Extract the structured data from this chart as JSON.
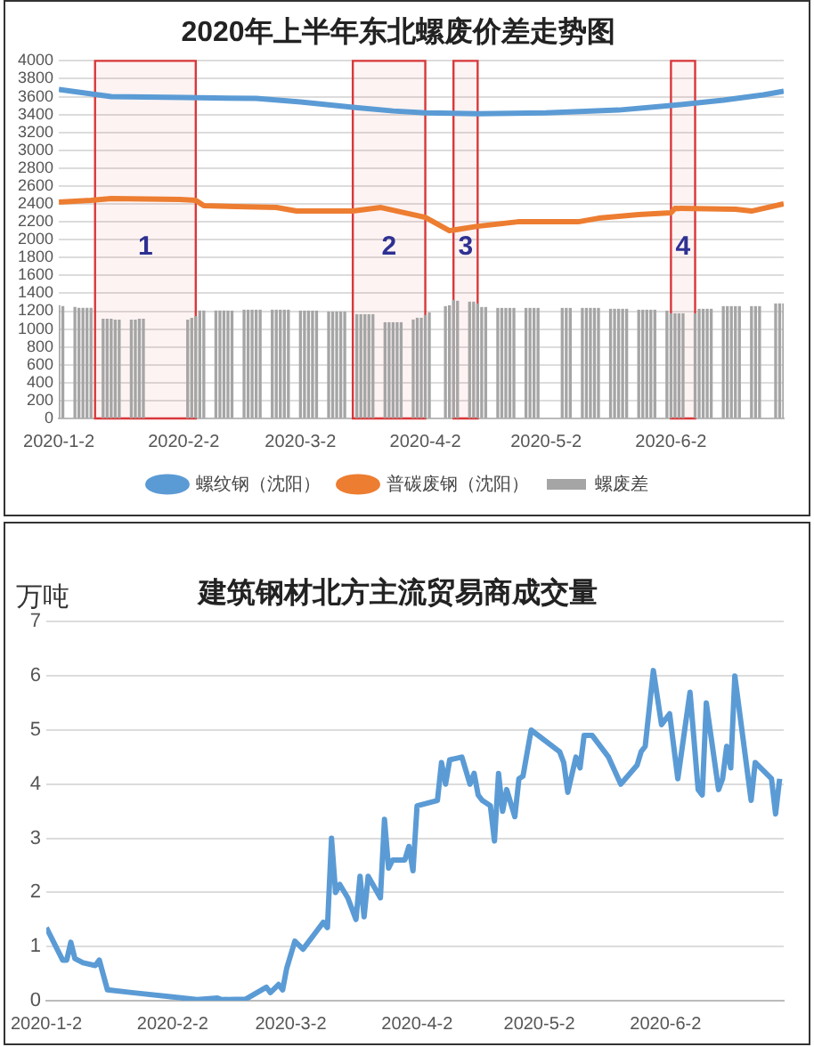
{
  "chart_data": [
    {
      "type": "line",
      "title": "2020年上半年东北螺废价差走势图",
      "legend": "bottom",
      "grid": "y",
      "marker": "none",
      "xlim": [
        "2020-01-02",
        "2020-06-30"
      ],
      "xticks": [
        {
          "value": "2020-01-02",
          "label": "2020-1-2"
        },
        {
          "value": "2020-02-02",
          "label": "2020-2-2"
        },
        {
          "value": "2020-03-02",
          "label": "2020-3-2"
        },
        {
          "value": "2020-04-02",
          "label": "2020-4-2"
        },
        {
          "value": "2020-05-02",
          "label": "2020-5-2"
        },
        {
          "value": "2020-06-02",
          "label": "2020-6-2"
        }
      ],
      "ylim": [
        0,
        4000
      ],
      "yticks": [
        0,
        200,
        400,
        600,
        800,
        1000,
        1200,
        1400,
        1600,
        1800,
        2000,
        2200,
        2400,
        2600,
        2800,
        3000,
        3200,
        3400,
        3600,
        3800,
        4000
      ],
      "bands": [
        {
          "axis": "x",
          "from": "2020-01-11",
          "to": "2020-02-05",
          "label": "1",
          "color": "#d9383a"
        },
        {
          "axis": "x",
          "from": "2020-03-15",
          "to": "2020-04-02",
          "label": "2",
          "color": "#d9383a"
        },
        {
          "axis": "x",
          "from": "2020-04-09",
          "to": "2020-04-15",
          "label": "3",
          "color": "#d9383a"
        },
        {
          "axis": "x",
          "from": "2020-06-02",
          "to": "2020-06-08",
          "label": "4",
          "color": "#d9383a"
        }
      ],
      "series": [
        {
          "name": "螺废差",
          "type": "bar",
          "color": "#a5a5a5",
          "x": [
            "2020-01-02",
            "2020-01-03",
            "2020-01-06",
            "2020-01-07",
            "2020-01-08",
            "2020-01-09",
            "2020-01-10",
            "2020-01-13",
            "2020-01-14",
            "2020-01-15",
            "2020-01-16",
            "2020-01-17",
            "2020-01-20",
            "2020-01-21",
            "2020-01-22",
            "2020-01-23",
            "2020-02-03",
            "2020-02-04",
            "2020-02-05",
            "2020-02-06",
            "2020-02-07",
            "2020-02-10",
            "2020-02-11",
            "2020-02-12",
            "2020-02-13",
            "2020-02-14",
            "2020-02-17",
            "2020-02-18",
            "2020-02-19",
            "2020-02-20",
            "2020-02-21",
            "2020-02-24",
            "2020-02-25",
            "2020-02-26",
            "2020-02-27",
            "2020-02-28",
            "2020-03-02",
            "2020-03-03",
            "2020-03-04",
            "2020-03-05",
            "2020-03-06",
            "2020-03-09",
            "2020-03-10",
            "2020-03-11",
            "2020-03-12",
            "2020-03-13",
            "2020-03-16",
            "2020-03-17",
            "2020-03-18",
            "2020-03-19",
            "2020-03-20",
            "2020-03-23",
            "2020-03-24",
            "2020-03-25",
            "2020-03-26",
            "2020-03-27",
            "2020-03-30",
            "2020-03-31",
            "2020-04-01",
            "2020-04-02",
            "2020-04-03",
            "2020-04-07",
            "2020-04-08",
            "2020-04-09",
            "2020-04-10",
            "2020-04-13",
            "2020-04-14",
            "2020-04-15",
            "2020-04-16",
            "2020-04-17",
            "2020-04-20",
            "2020-04-21",
            "2020-04-22",
            "2020-04-23",
            "2020-04-24",
            "2020-04-27",
            "2020-04-28",
            "2020-04-29",
            "2020-04-30",
            "2020-05-06",
            "2020-05-07",
            "2020-05-08",
            "2020-05-11",
            "2020-05-12",
            "2020-05-13",
            "2020-05-14",
            "2020-05-15",
            "2020-05-18",
            "2020-05-19",
            "2020-05-20",
            "2020-05-21",
            "2020-05-22",
            "2020-05-25",
            "2020-05-26",
            "2020-05-27",
            "2020-05-28",
            "2020-05-29",
            "2020-06-01",
            "2020-06-02",
            "2020-06-03",
            "2020-06-04",
            "2020-06-05",
            "2020-06-08",
            "2020-06-09",
            "2020-06-10",
            "2020-06-11",
            "2020-06-12",
            "2020-06-15",
            "2020-06-16",
            "2020-06-17",
            "2020-06-18",
            "2020-06-19",
            "2020-06-22",
            "2020-06-23",
            "2020-06-24",
            "2020-06-28",
            "2020-06-29",
            "2020-06-30"
          ],
          "values": [
            1260,
            1250,
            1240,
            1230,
            1230,
            1230,
            1230,
            1110,
            1110,
            1110,
            1100,
            1100,
            1100,
            1100,
            1110,
            1110,
            1100,
            1120,
            1140,
            1200,
            1200,
            1200,
            1200,
            1200,
            1200,
            1200,
            1210,
            1210,
            1210,
            1210,
            1210,
            1210,
            1210,
            1210,
            1210,
            1210,
            1200,
            1200,
            1200,
            1200,
            1200,
            1190,
            1190,
            1190,
            1190,
            1190,
            1160,
            1160,
            1160,
            1160,
            1160,
            1070,
            1070,
            1070,
            1070,
            1070,
            1100,
            1120,
            1120,
            1150,
            1180,
            1250,
            1260,
            1320,
            1310,
            1300,
            1300,
            1280,
            1240,
            1240,
            1230,
            1230,
            1230,
            1230,
            1230,
            1230,
            1230,
            1230,
            1230,
            1230,
            1230,
            1230,
            1230,
            1230,
            1230,
            1230,
            1230,
            1220,
            1220,
            1220,
            1220,
            1220,
            1210,
            1210,
            1210,
            1210,
            1210,
            1200,
            1170,
            1170,
            1170,
            1170,
            1170,
            1220,
            1220,
            1220,
            1220,
            1250,
            1250,
            1250,
            1250,
            1250,
            1250,
            1250,
            1250,
            1280,
            1280,
            1280
          ]
        },
        {
          "name": "螺纹钢（沈阳）",
          "type": "line",
          "color": "#5b9bd5",
          "x": [
            "2020-01-02",
            "2020-01-15",
            "2020-02-02",
            "2020-02-20",
            "2020-03-02",
            "2020-03-15",
            "2020-03-25",
            "2020-04-02",
            "2020-04-15",
            "2020-05-02",
            "2020-05-20",
            "2020-06-02",
            "2020-06-15",
            "2020-06-25",
            "2020-06-30"
          ],
          "values": [
            3680,
            3600,
            3590,
            3580,
            3540,
            3480,
            3440,
            3420,
            3410,
            3420,
            3450,
            3500,
            3560,
            3620,
            3660
          ]
        },
        {
          "name": "普碳废钢（沈阳）",
          "type": "line",
          "color": "#ed7d31",
          "x": [
            "2020-01-02",
            "2020-01-10",
            "2020-01-15",
            "2020-02-01",
            "2020-02-05",
            "2020-02-07",
            "2020-02-25",
            "2020-03-01",
            "2020-03-15",
            "2020-03-22",
            "2020-03-28",
            "2020-04-02",
            "2020-04-08",
            "2020-04-15",
            "2020-04-25",
            "2020-05-10",
            "2020-05-15",
            "2020-05-25",
            "2020-06-02",
            "2020-06-03",
            "2020-06-18",
            "2020-06-22",
            "2020-06-30"
          ],
          "values": [
            2420,
            2440,
            2460,
            2450,
            2440,
            2380,
            2360,
            2320,
            2320,
            2360,
            2300,
            2250,
            2100,
            2150,
            2200,
            2200,
            2240,
            2280,
            2300,
            2350,
            2340,
            2320,
            2400
          ]
        }
      ]
    },
    {
      "type": "line",
      "title": "建筑钢材北方主流贸易商成交量",
      "ylabel": "万吨",
      "grid": "y",
      "marker": "none",
      "color": "#5b9bd5",
      "xlim": [
        "2020-01-02",
        "2020-07-01"
      ],
      "xticks": [
        {
          "value": "2020-01-02",
          "label": "2020-1-2"
        },
        {
          "value": "2020-02-02",
          "label": "2020-2-2"
        },
        {
          "value": "2020-03-02",
          "label": "2020-3-2"
        },
        {
          "value": "2020-04-02",
          "label": "2020-4-2"
        },
        {
          "value": "2020-05-02",
          "label": "2020-5-2"
        },
        {
          "value": "2020-06-02",
          "label": "2020-6-2"
        }
      ],
      "ylim": [
        0,
        7
      ],
      "yticks": [
        0,
        1,
        2,
        3,
        4,
        5,
        6,
        7
      ],
      "x": [
        "2020-01-02",
        "2020-01-06",
        "2020-01-07",
        "2020-01-08",
        "2020-01-09",
        "2020-01-11",
        "2020-01-14",
        "2020-01-15",
        "2020-01-17",
        "2020-01-23",
        "2020-02-02",
        "2020-02-08",
        "2020-02-13",
        "2020-02-14",
        "2020-02-20",
        "2020-02-25",
        "2020-02-26",
        "2020-02-28",
        "2020-02-29",
        "2020-03-01",
        "2020-03-03",
        "2020-03-05",
        "2020-03-06",
        "2020-03-08",
        "2020-03-10",
        "2020-03-11",
        "2020-03-12",
        "2020-03-13",
        "2020-03-14",
        "2020-03-16",
        "2020-03-18",
        "2020-03-19",
        "2020-03-20",
        "2020-03-21",
        "2020-03-24",
        "2020-03-25",
        "2020-03-26",
        "2020-03-27",
        "2020-03-30",
        "2020-03-31",
        "2020-04-01",
        "2020-04-02",
        "2020-04-07",
        "2020-04-08",
        "2020-04-09",
        "2020-04-10",
        "2020-04-13",
        "2020-04-15",
        "2020-04-16",
        "2020-04-17",
        "2020-04-18",
        "2020-04-20",
        "2020-04-21",
        "2020-04-22",
        "2020-04-23",
        "2020-04-24",
        "2020-04-26",
        "2020-04-27",
        "2020-04-28",
        "2020-04-30",
        "2020-05-07",
        "2020-05-08",
        "2020-05-09",
        "2020-05-11",
        "2020-05-12",
        "2020-05-13",
        "2020-05-15",
        "2020-05-19",
        "2020-05-22",
        "2020-05-26",
        "2020-05-27",
        "2020-05-28",
        "2020-05-30",
        "2020-06-01",
        "2020-06-03",
        "2020-06-05",
        "2020-06-08",
        "2020-06-10",
        "2020-06-11",
        "2020-06-12",
        "2020-06-15",
        "2020-06-16",
        "2020-06-17",
        "2020-06-18",
        "2020-06-19",
        "2020-06-23",
        "2020-06-24",
        "2020-06-28",
        "2020-06-29",
        "2020-06-30"
      ],
      "values": [
        1.35,
        0.75,
        0.75,
        1.08,
        0.78,
        0.7,
        0.65,
        0.75,
        0.2,
        0.15,
        0.07,
        0.02,
        0.05,
        0.02,
        0.03,
        0.25,
        0.15,
        0.3,
        0.2,
        0.6,
        1.1,
        0.95,
        1.05,
        1.25,
        1.45,
        1.35,
        3.0,
        2.0,
        2.15,
        1.9,
        1.5,
        2.3,
        1.55,
        2.3,
        1.9,
        3.35,
        2.45,
        2.6,
        2.6,
        2.85,
        2.4,
        3.6,
        3.7,
        4.4,
        4.0,
        4.45,
        4.5,
        4.0,
        4.2,
        3.8,
        3.7,
        3.6,
        2.95,
        4.2,
        3.5,
        3.9,
        3.4,
        4.1,
        4.15,
        5.0,
        4.6,
        4.4,
        3.85,
        4.5,
        4.3,
        4.9,
        4.9,
        4.5,
        4.0,
        4.35,
        4.6,
        4.7,
        6.1,
        5.1,
        5.3,
        4.1,
        5.7,
        3.9,
        3.8,
        5.5,
        3.9,
        4.1,
        4.7,
        4.3,
        6.0,
        3.7,
        4.4,
        4.1,
        3.45,
        4.1
      ]
    }
  ]
}
